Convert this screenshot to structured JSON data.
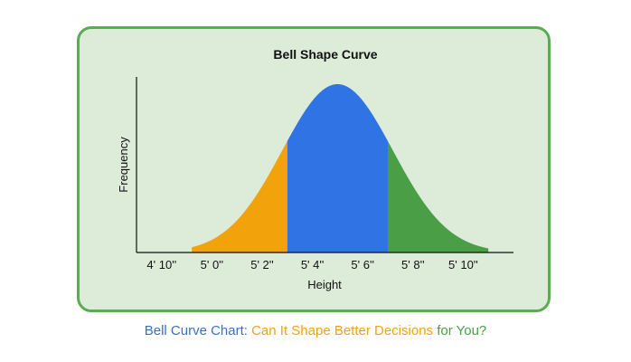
{
  "chart_data": {
    "type": "area",
    "title": "Bell Shape Curve",
    "xlabel": "Height",
    "ylabel": "Frequency",
    "x_ticks": [
      "4' 10''",
      "5' 0''",
      "5' 2''",
      "5' 4''",
      "5' 6''",
      "5' 8''",
      "5' 10''"
    ],
    "x_tick_inches": [
      58,
      60,
      62,
      64,
      66,
      68,
      70
    ],
    "xlim_inches": [
      57,
      72
    ],
    "distribution": {
      "mean_inches": 65,
      "std_inches": 2.2
    },
    "regions": [
      {
        "from_inches": 59.2,
        "to_inches": 63,
        "color": "#f2a30c"
      },
      {
        "from_inches": 63,
        "to_inches": 67,
        "color": "#2f73e4"
      },
      {
        "from_inches": 67,
        "to_inches": 71,
        "color": "#4a9e45"
      }
    ],
    "grid": false,
    "legend": "none"
  },
  "caption": {
    "part1": "Bell Curve Chart: ",
    "part2": "Can It Shape Better Decisions",
    "part3": " for You?",
    "color1": "#3a6fc4",
    "color2": "#f2a30c",
    "color3": "#4a9e45"
  }
}
